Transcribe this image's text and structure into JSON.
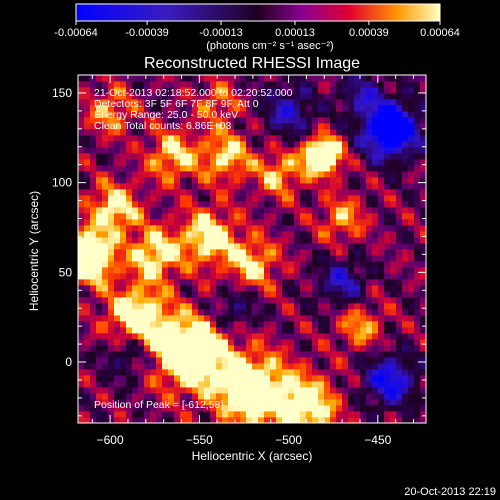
{
  "chart_data": {
    "type": "heatmap",
    "title": "Reconstructed RHESSI Image",
    "colorbar": {
      "ticks": [
        "-0.00064",
        "-0.00039",
        "-0.00013",
        "0.00013",
        "0.00039",
        "0.00064"
      ],
      "range": [
        -0.00064,
        0.00064
      ],
      "unit_label": "(photons cm⁻² s⁻¹ asec⁻²)"
    },
    "xlabel": "Heliocentric X (arcsec)",
    "ylabel": "Heliocentric Y (arcsec)",
    "xlim": [
      -618,
      -423
    ],
    "ylim": [
      -34,
      160
    ],
    "xticks": [
      -600,
      -550,
      -500,
      -450
    ],
    "yticks": [
      0,
      50,
      100,
      150
    ],
    "annotations": [
      "21-Oct-2013 02:18:52.000 to 02:20:52.000",
      "Detectors: 3F 5F 6F 7F 8F 9F, Att 0",
      "Energy Range: 25.0 - 50.0 keV",
      "Clean    Total counts: 6.86E+03"
    ],
    "peak_label": "Position of Peak = [-612,58]",
    "peak": {
      "x": -612,
      "y": 58
    },
    "bright_sources": [
      {
        "x": -481,
        "y": 115,
        "value": 0.00064
      },
      {
        "x": -612,
        "y": 58,
        "value": 0.00064
      },
      {
        "x": -550,
        "y": 5,
        "value": 0.00055
      }
    ],
    "dark_sources": [
      {
        "x": -443,
        "y": 130,
        "value": -0.0005
      },
      {
        "x": -443,
        "y": -10,
        "value": -0.0003
      }
    ]
  },
  "footer_timestamp": "20-Oct-2013 22:19"
}
